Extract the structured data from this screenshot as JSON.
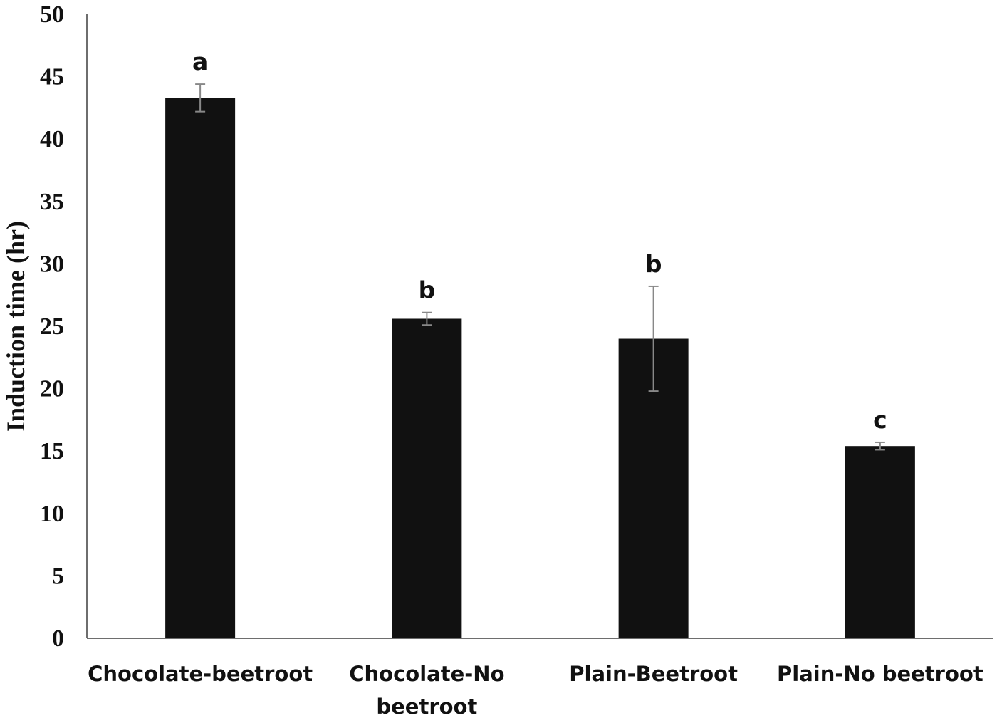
{
  "chart_data": {
    "type": "bar",
    "title": "",
    "xlabel": "",
    "ylabel": "Induction time (hr)",
    "ylim": [
      0,
      50
    ],
    "yticks": [
      0,
      5,
      10,
      15,
      20,
      25,
      30,
      35,
      40,
      45,
      50
    ],
    "grid": false,
    "categories": [
      [
        "Chocolate-beetroot"
      ],
      [
        "Chocolate-No",
        "beetroot"
      ],
      [
        "Plain-Beetroot"
      ],
      [
        "Plain-No beetroot"
      ]
    ],
    "series": [
      {
        "values": [
          43.3,
          25.6,
          24.0,
          15.4
        ],
        "errors": [
          1.1,
          0.5,
          4.2,
          0.3
        ],
        "significance": [
          "a",
          "b",
          "b",
          "c"
        ]
      }
    ],
    "colors": {
      "bar": "#111111",
      "axis": "#6e6e6e",
      "error_bar": "#888888"
    }
  }
}
